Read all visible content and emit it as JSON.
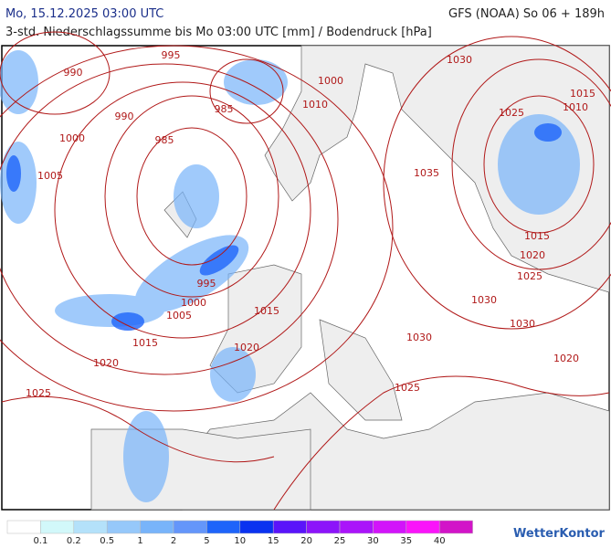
{
  "header": {
    "date": "Mo, 15.12.2025 03:00 UTC",
    "model": "GFS (NOAA) So 06 + 189h",
    "subtitle": "3-std. Niederschlagssumme bis Mo 03:00 UTC [mm] / Bodendruck [hPa]"
  },
  "isobar_labels": [
    "990",
    "995",
    "985",
    "990",
    "1000",
    "985",
    "1005",
    "1000",
    "1010",
    "1030",
    "1015",
    "1010",
    "1025",
    "1035",
    "1015",
    "1020",
    "1025",
    "1030",
    "1030",
    "1020",
    "1030",
    "995",
    "1000",
    "1005",
    "1015",
    "1015",
    "1020",
    "1020",
    "1025",
    "1025"
  ],
  "legend": {
    "colors": [
      "#ffffff",
      "#d2f8fa",
      "#b4e1fa",
      "#96c8fa",
      "#78b4fa",
      "#6496fa",
      "#1e64fa",
      "#0a32f0",
      "#5a14fa",
      "#8c14fa",
      "#aa14fa",
      "#d214fa",
      "#fa14fa",
      "#d214c8"
    ],
    "labels": [
      "0.1",
      "0.2",
      "0.5",
      "1",
      "2",
      "5",
      "10",
      "15",
      "20",
      "25",
      "30",
      "35",
      "40"
    ]
  },
  "logo": "WetterKontor"
}
